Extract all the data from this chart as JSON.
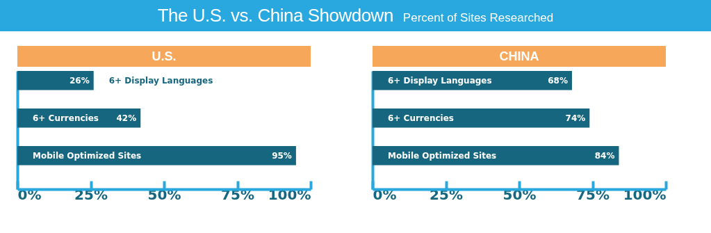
{
  "chart_data": [
    {
      "type": "other",
      "title": "The U.S. vs. China Showdown",
      "subtitle": "Percent of Sites Researched"
    },
    {
      "type": "bar",
      "orientation": "horizontal",
      "title": "U.S.",
      "categories": [
        "6+ Display Languages",
        "6+ Currencies",
        "Mobile Optimized Sites"
      ],
      "values": [
        26,
        42,
        95
      ],
      "value_labels": [
        "26%",
        "42%",
        "95%"
      ],
      "color": "#17667f",
      "xlim": [
        0,
        100
      ],
      "xticks": [
        {
          "value": 0,
          "label": "0%"
        },
        {
          "value": 25,
          "label": "25%"
        },
        {
          "value": 50,
          "label": "50%"
        },
        {
          "value": 75,
          "label": "75%"
        },
        {
          "value": 100,
          "label": "100%"
        }
      ]
    },
    {
      "type": "bar",
      "orientation": "horizontal",
      "title": "CHINA",
      "categories": [
        "6+ Display Languages",
        "6+ Currencies",
        "Mobile Optimized Sites"
      ],
      "values": [
        68,
        74,
        84
      ],
      "value_labels": [
        "68%",
        "74%",
        "84%"
      ],
      "color": "#17667f",
      "xlim": [
        0,
        100
      ],
      "xticks": [
        {
          "value": 0,
          "label": "0%"
        },
        {
          "value": 25,
          "label": "25%"
        },
        {
          "value": 50,
          "label": "50%"
        },
        {
          "value": 75,
          "label": "75%"
        },
        {
          "value": 100,
          "label": "100%"
        }
      ]
    }
  ]
}
